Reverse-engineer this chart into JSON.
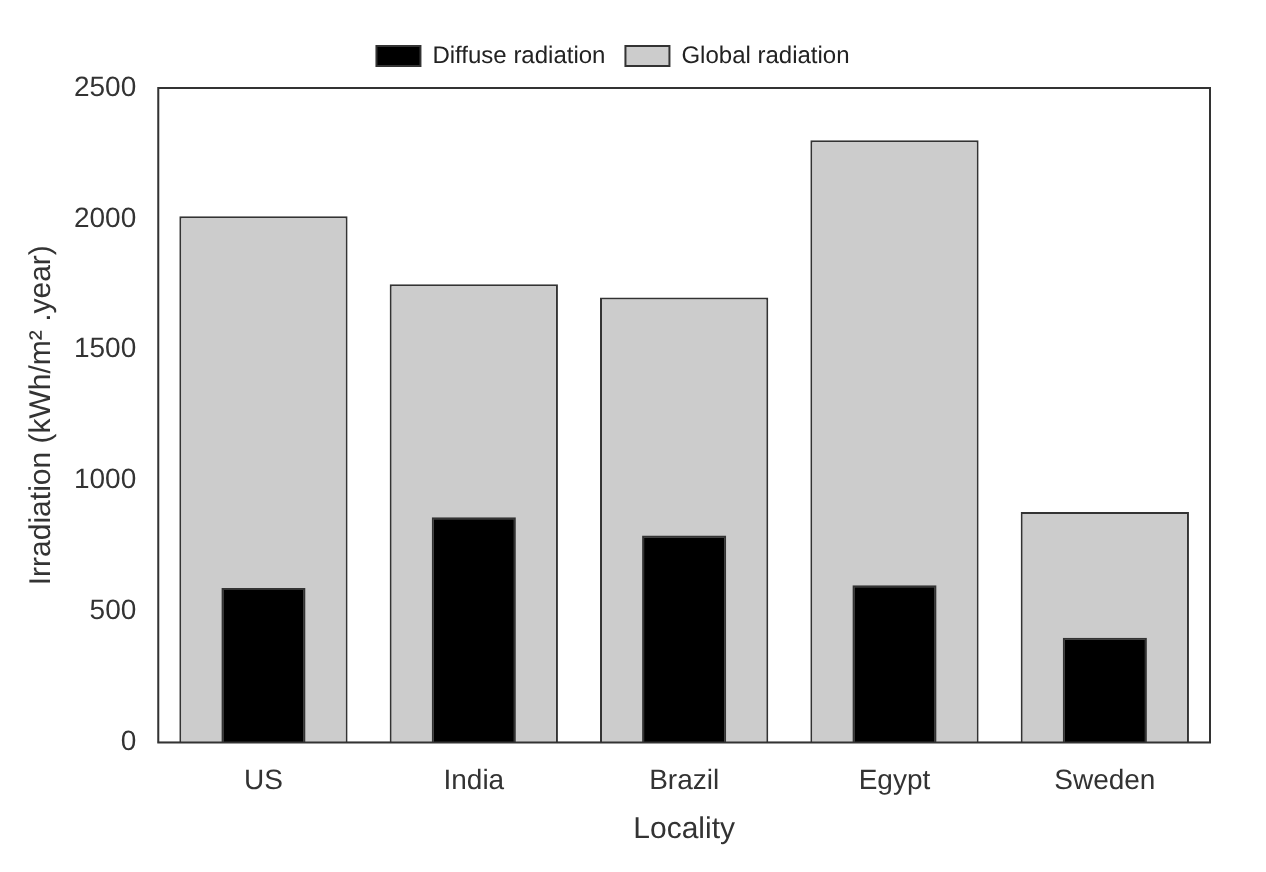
{
  "chart_data": {
    "type": "bar",
    "xlabel": "Locality",
    "ylabel": "Irradiation (kWh/m² .year)",
    "categories": [
      "US",
      "India",
      "Brazil",
      "Egypt",
      "Sweden"
    ],
    "series": [
      {
        "name": "Global radiation",
        "color": "#cccccc",
        "values": [
          2010,
          1750,
          1700,
          2300,
          880
        ]
      },
      {
        "name": "Diffuse radiation",
        "color": "#000000",
        "values": [
          590,
          860,
          790,
          600,
          400
        ]
      }
    ],
    "ylim": [
      0,
      2500
    ],
    "yticks": [
      0,
      500,
      1000,
      1500,
      2000,
      2500
    ],
    "grid": false,
    "legend": "top"
  }
}
